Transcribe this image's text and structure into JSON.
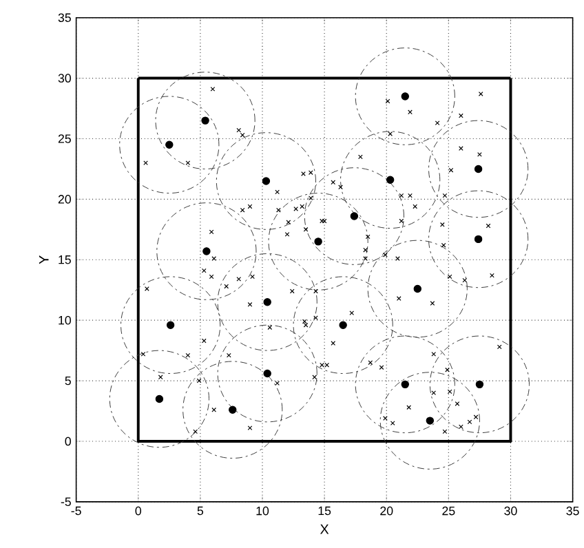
{
  "chart_data": {
    "type": "scatter",
    "xlabel": "X",
    "ylabel": "Y",
    "xlim": [
      -5,
      35
    ],
    "ylim": [
      -5,
      35
    ],
    "xticks": [
      -5,
      0,
      5,
      10,
      15,
      20,
      25,
      30,
      35
    ],
    "yticks": [
      -5,
      0,
      5,
      10,
      15,
      20,
      25,
      30,
      35
    ],
    "grid": true,
    "series": [
      {
        "type": "line",
        "color": "#000000",
        "x": [
          0,
          0,
          30,
          30
        ],
        "values": [
          30,
          0,
          0,
          30
        ]
      },
      {
        "type": "line",
        "color": "#000000",
        "x": [
          0,
          30
        ],
        "values": [
          30,
          30
        ]
      },
      {
        "type": "scatter",
        "marker": "cross",
        "color": "#000000",
        "x": [
          6.0,
          8.1,
          8.4,
          0.6,
          4.0,
          13.3,
          13.9,
          11.2,
          9.0,
          8.4,
          11.3,
          12.7,
          13.2,
          13.9,
          12.1,
          12.0,
          13.5,
          14.8,
          5.9,
          6.1,
          20.1,
          21.9,
          27.6,
          26.0,
          24.1,
          20.3,
          17.9,
          26.0,
          27.5,
          25.2,
          15.7,
          16.3,
          21.2,
          21.9,
          22.3,
          24.7,
          15.0,
          21.2,
          28.2,
          18.5,
          24.5,
          24.6,
          18.3,
          20.9,
          19.9,
          18.3,
          5.3,
          5.9,
          7.1,
          8.1,
          9.2,
          0.7,
          12.4,
          9.0,
          14.3,
          10.6,
          13.5,
          14.3,
          5.3,
          0.4,
          4.0,
          7.3,
          14.8,
          1.8,
          4.9,
          14.2,
          11.2,
          6.1,
          4.6,
          9.0,
          25.1,
          26.3,
          28.5,
          21.0,
          23.7,
          17.2,
          13.4,
          15.7,
          15.2,
          18.7,
          19.6,
          23.8,
          29.1,
          24.9,
          23.8,
          25.1,
          25.7,
          21.8,
          19.9,
          20.5,
          27.2,
          26.7,
          24.7,
          26.0
        ],
        "values": [
          29.1,
          25.7,
          25.3,
          23.0,
          23.0,
          22.1,
          22.2,
          20.6,
          19.4,
          19.1,
          19.1,
          19.2,
          19.4,
          20.1,
          18.1,
          17.1,
          17.5,
          18.2,
          17.3,
          15.1,
          28.1,
          27.2,
          28.7,
          26.9,
          26.3,
          25.4,
          23.5,
          24.2,
          23.7,
          22.4,
          21.4,
          21.0,
          20.3,
          20.3,
          19.4,
          20.3,
          18.2,
          18.2,
          17.8,
          16.9,
          17.9,
          16.2,
          15.8,
          15.1,
          15.4,
          15.1,
          14.1,
          13.6,
          12.8,
          13.4,
          13.6,
          12.6,
          12.4,
          11.3,
          12.4,
          9.4,
          9.6,
          10.2,
          8.3,
          7.2,
          7.1,
          7.1,
          6.3,
          5.3,
          5.0,
          5.3,
          4.8,
          2.6,
          0.8,
          1.1,
          13.6,
          13.3,
          13.7,
          11.8,
          11.4,
          10.6,
          9.9,
          8.1,
          6.3,
          6.5,
          6.1,
          7.2,
          7.8,
          5.9,
          4.0,
          4.1,
          3.1,
          2.8,
          1.9,
          1.5,
          2.0,
          1.6,
          0.8,
          1.2
        ]
      },
      {
        "type": "scatter",
        "marker": "circle",
        "color": "#000000",
        "x": [
          5.4,
          2.5,
          10.3,
          14.5,
          5.5,
          21.5,
          27.4,
          20.3,
          17.4,
          27.4,
          10.4,
          2.6,
          10.4,
          1.7,
          7.6,
          22.5,
          16.5,
          21.5,
          27.5,
          23.5
        ],
        "values": [
          26.5,
          24.5,
          21.5,
          16.5,
          15.7,
          28.5,
          22.5,
          21.6,
          18.6,
          16.7,
          11.5,
          9.6,
          5.6,
          3.5,
          2.6,
          12.6,
          9.6,
          4.7,
          4.7,
          1.7
        ]
      },
      {
        "type": "bubble",
        "line_style": "dashed",
        "color": "#3a3a3a",
        "x": [
          5.4,
          2.5,
          10.3,
          14.5,
          5.5,
          21.5,
          27.4,
          20.3,
          17.4,
          27.4,
          10.4,
          2.6,
          10.4,
          1.7,
          7.6,
          22.5,
          16.5,
          21.5,
          27.5,
          23.5
        ],
        "values": [
          26.5,
          24.5,
          21.5,
          16.5,
          15.7,
          28.5,
          22.5,
          21.6,
          18.6,
          16.7,
          11.5,
          9.6,
          5.6,
          3.5,
          2.6,
          12.6,
          9.6,
          4.7,
          4.7,
          1.7
        ],
        "sizes": [
          1,
          1,
          1,
          1,
          1,
          1,
          1,
          1,
          1,
          1,
          1,
          1,
          1,
          1,
          1,
          1,
          1,
          1,
          1,
          1
        ]
      }
    ]
  }
}
